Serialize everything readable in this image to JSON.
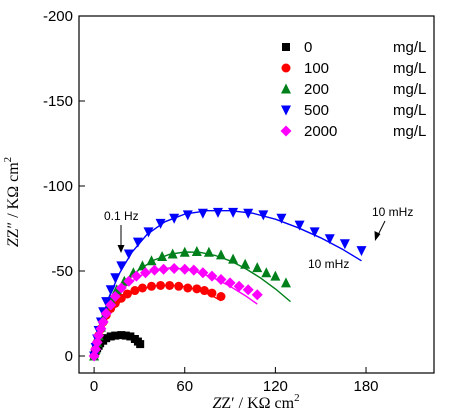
{
  "chart_data": {
    "type": "scatter",
    "title": "",
    "xlabel": {
      "main": "Z′ / KΩ cm",
      "sup": "2"
    },
    "ylabel": {
      "main": "Z″ / KΩ cm",
      "sup": "2"
    },
    "xlim": [
      -10,
      225
    ],
    "ylim": [
      10,
      -200
    ],
    "xticks": [
      0,
      60,
      120,
      180
    ],
    "yticks": [
      0,
      -50,
      -100,
      -150,
      -200
    ],
    "legend_placement": "top-right",
    "grid": false,
    "series": [
      {
        "name": "0",
        "unit": "mg/L",
        "color": "#000000",
        "marker": "square",
        "points": [
          [
            0,
            0
          ],
          [
            0.5,
            -1.5
          ],
          [
            1,
            -3
          ],
          [
            2,
            -4.5
          ],
          [
            3,
            -6
          ],
          [
            4,
            -7.5
          ],
          [
            6,
            -9
          ],
          [
            8,
            -10.5
          ],
          [
            11,
            -11.5
          ],
          [
            14,
            -12
          ],
          [
            18,
            -12.3
          ],
          [
            21,
            -12
          ],
          [
            24,
            -11.5
          ],
          [
            27,
            -10
          ],
          [
            29,
            -8.5
          ],
          [
            30.5,
            -7
          ]
        ],
        "fit": [
          [
            0,
            0
          ],
          [
            1,
            -3
          ],
          [
            3,
            -6.5
          ],
          [
            6,
            -9.5
          ],
          [
            10,
            -11.5
          ],
          [
            15,
            -12.5
          ],
          [
            20,
            -12.6
          ],
          [
            24,
            -11.8
          ],
          [
            27,
            -10.3
          ],
          [
            29.5,
            -8.5
          ]
        ]
      },
      {
        "name": "100",
        "unit": "mg/L",
        "color": "#ff0000",
        "marker": "circle",
        "points": [
          [
            0,
            0
          ],
          [
            1,
            -4
          ],
          [
            2,
            -8
          ],
          [
            3,
            -12
          ],
          [
            4.5,
            -16
          ],
          [
            6,
            -20
          ],
          [
            8,
            -24
          ],
          [
            11,
            -28
          ],
          [
            14,
            -31
          ],
          [
            18,
            -34
          ],
          [
            22,
            -36.5
          ],
          [
            27,
            -38.5
          ],
          [
            32,
            -40
          ],
          [
            38,
            -41
          ],
          [
            44,
            -41.5
          ],
          [
            50,
            -41.5
          ],
          [
            56,
            -41
          ],
          [
            62,
            -40
          ],
          [
            68,
            -39.5
          ],
          [
            73,
            -38.5
          ],
          [
            78,
            -37
          ],
          [
            84,
            -35
          ]
        ],
        "fit": [
          [
            0,
            0
          ],
          [
            2,
            -8
          ],
          [
            5,
            -16
          ],
          [
            9,
            -23
          ],
          [
            15,
            -30
          ],
          [
            22,
            -35.5
          ],
          [
            30,
            -39
          ],
          [
            40,
            -41.3
          ],
          [
            50,
            -41.8
          ],
          [
            60,
            -40.8
          ],
          [
            70,
            -38.5
          ],
          [
            78,
            -35.5
          ],
          [
            84,
            -32.5
          ]
        ]
      },
      {
        "name": "200",
        "unit": "mg/L",
        "color": "#00801a",
        "marker": "triangle-up",
        "points": [
          [
            0,
            0
          ],
          [
            1,
            -4
          ],
          [
            2,
            -8
          ],
          [
            3,
            -12
          ],
          [
            4.5,
            -17
          ],
          [
            6,
            -22
          ],
          [
            8,
            -27
          ],
          [
            11,
            -33
          ],
          [
            15,
            -39
          ],
          [
            20,
            -44
          ],
          [
            26,
            -49
          ],
          [
            32,
            -53
          ],
          [
            38,
            -56
          ],
          [
            45,
            -58.5
          ],
          [
            52,
            -60
          ],
          [
            60,
            -61
          ],
          [
            68,
            -61.5
          ],
          [
            76,
            -61
          ],
          [
            84,
            -59.5
          ],
          [
            92,
            -57
          ],
          [
            100,
            -54
          ],
          [
            108,
            -52
          ],
          [
            114,
            -49
          ],
          [
            120,
            -47
          ],
          [
            127,
            -43
          ]
        ],
        "fit": [
          [
            0,
            0
          ],
          [
            2,
            -8
          ],
          [
            5,
            -17
          ],
          [
            9,
            -26
          ],
          [
            15,
            -36
          ],
          [
            22,
            -44.5
          ],
          [
            30,
            -51
          ],
          [
            40,
            -56.5
          ],
          [
            50,
            -59.8
          ],
          [
            60,
            -61.2
          ],
          [
            70,
            -61
          ],
          [
            80,
            -59.2
          ],
          [
            90,
            -56
          ],
          [
            100,
            -51.5
          ],
          [
            110,
            -46
          ],
          [
            120,
            -39.5
          ],
          [
            130,
            -32
          ]
        ]
      },
      {
        "name": "500",
        "unit": "mg/L",
        "color": "#0000ff",
        "marker": "triangle-down",
        "points": [
          [
            0,
            0
          ],
          [
            1,
            -5
          ],
          [
            2,
            -10
          ],
          [
            3,
            -15
          ],
          [
            4.5,
            -20
          ],
          [
            6,
            -26
          ],
          [
            8,
            -32
          ],
          [
            11,
            -39
          ],
          [
            14,
            -46
          ],
          [
            18,
            -53
          ],
          [
            23,
            -60
          ],
          [
            29,
            -67
          ],
          [
            36,
            -73
          ],
          [
            44,
            -78
          ],
          [
            53,
            -81
          ],
          [
            62,
            -83
          ],
          [
            72,
            -84
          ],
          [
            82,
            -84.5
          ],
          [
            92,
            -84.5
          ],
          [
            102,
            -84
          ],
          [
            112,
            -83
          ],
          [
            124,
            -81
          ],
          [
            136,
            -77
          ],
          [
            146,
            -73
          ],
          [
            156,
            -69
          ],
          [
            166,
            -66
          ],
          [
            177,
            -62
          ]
        ],
        "fit": [
          [
            0,
            0
          ],
          [
            2,
            -10
          ],
          [
            5,
            -21
          ],
          [
            10,
            -35
          ],
          [
            17,
            -49
          ],
          [
            25,
            -61
          ],
          [
            35,
            -71.5
          ],
          [
            47,
            -79
          ],
          [
            60,
            -83.5
          ],
          [
            75,
            -85.5
          ],
          [
            90,
            -85.5
          ],
          [
            105,
            -84
          ],
          [
            120,
            -80.5
          ],
          [
            135,
            -75.5
          ],
          [
            150,
            -69.5
          ],
          [
            165,
            -62.5
          ],
          [
            177,
            -56
          ]
        ]
      },
      {
        "name": "2000",
        "unit": "mg/L",
        "color": "#ff00ff",
        "marker": "diamond",
        "points": [
          [
            0,
            0
          ],
          [
            1,
            -4
          ],
          [
            2,
            -8
          ],
          [
            3,
            -12
          ],
          [
            4.5,
            -16
          ],
          [
            6,
            -20
          ],
          [
            8,
            -25
          ],
          [
            11,
            -30
          ],
          [
            14,
            -35
          ],
          [
            18,
            -40
          ],
          [
            23,
            -44
          ],
          [
            28,
            -47
          ],
          [
            34,
            -49
          ],
          [
            40,
            -50.5
          ],
          [
            46,
            -51
          ],
          [
            53,
            -51.5
          ],
          [
            60,
            -51
          ],
          [
            66,
            -50.5
          ],
          [
            72,
            -49
          ],
          [
            78,
            -47
          ],
          [
            84,
            -45
          ],
          [
            90,
            -43
          ],
          [
            96,
            -41
          ],
          [
            102,
            -39
          ],
          [
            108,
            -36
          ]
        ],
        "fit": [
          [
            0,
            0
          ],
          [
            2,
            -8
          ],
          [
            5,
            -17
          ],
          [
            9,
            -26
          ],
          [
            15,
            -35
          ],
          [
            22,
            -42
          ],
          [
            30,
            -47
          ],
          [
            40,
            -50.5
          ],
          [
            50,
            -51.8
          ],
          [
            60,
            -51.2
          ],
          [
            70,
            -49
          ],
          [
            80,
            -45.5
          ],
          [
            90,
            -41
          ],
          [
            100,
            -35.5
          ],
          [
            108,
            -30.5
          ]
        ]
      }
    ],
    "annotations": [
      {
        "text": "0.1 Hz",
        "arrow_to": [
          14,
          -54
        ]
      },
      {
        "text": "10 mHz",
        "arrow_to": [
          177,
          -62
        ]
      },
      {
        "text": "10 mHz",
        "arrow_to": []
      }
    ]
  }
}
